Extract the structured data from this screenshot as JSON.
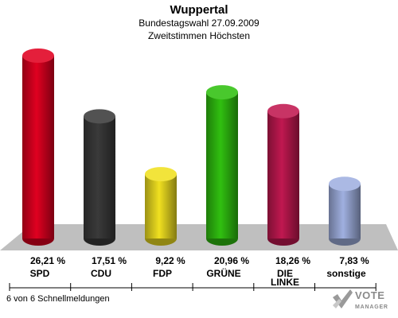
{
  "header": {
    "title": "Wuppertal",
    "subtitle1": "Bundestagswahl 27.09.2009",
    "subtitle2": "Zweitstimmen Höchsten"
  },
  "footer": {
    "status": "6 von 6 Schnellmeldungen"
  },
  "logo": {
    "line1": "VOTE",
    "line2": "MANAGER"
  },
  "chart_data": {
    "type": "bar",
    "title": "Wuppertal",
    "subtitle": "Bundestagswahl 27.09.2009 / Zweitstimmen Höchsten",
    "categories": [
      "SPD",
      "CDU",
      "FDP",
      "GRÜNE",
      "DIE LINKE",
      "sonstige"
    ],
    "category_lines": [
      [
        "SPD"
      ],
      [
        "CDU"
      ],
      [
        "FDP"
      ],
      [
        "GRÜNE"
      ],
      [
        "DIE",
        "LINKE"
      ],
      [
        "sonstige"
      ]
    ],
    "values": [
      26.21,
      17.51,
      9.22,
      20.96,
      18.26,
      7.83
    ],
    "value_labels": [
      "26,21 %",
      "17,51 %",
      "9,22 %",
      "20,96 %",
      "18,26 %",
      "7,83 %"
    ],
    "colors": [
      "#e00020",
      "#3a3a3a",
      "#f0e020",
      "#30c010",
      "#c01850",
      "#a0b0e0"
    ],
    "ylim": [
      0,
      26.21
    ],
    "grid": false,
    "legend": "none"
  }
}
